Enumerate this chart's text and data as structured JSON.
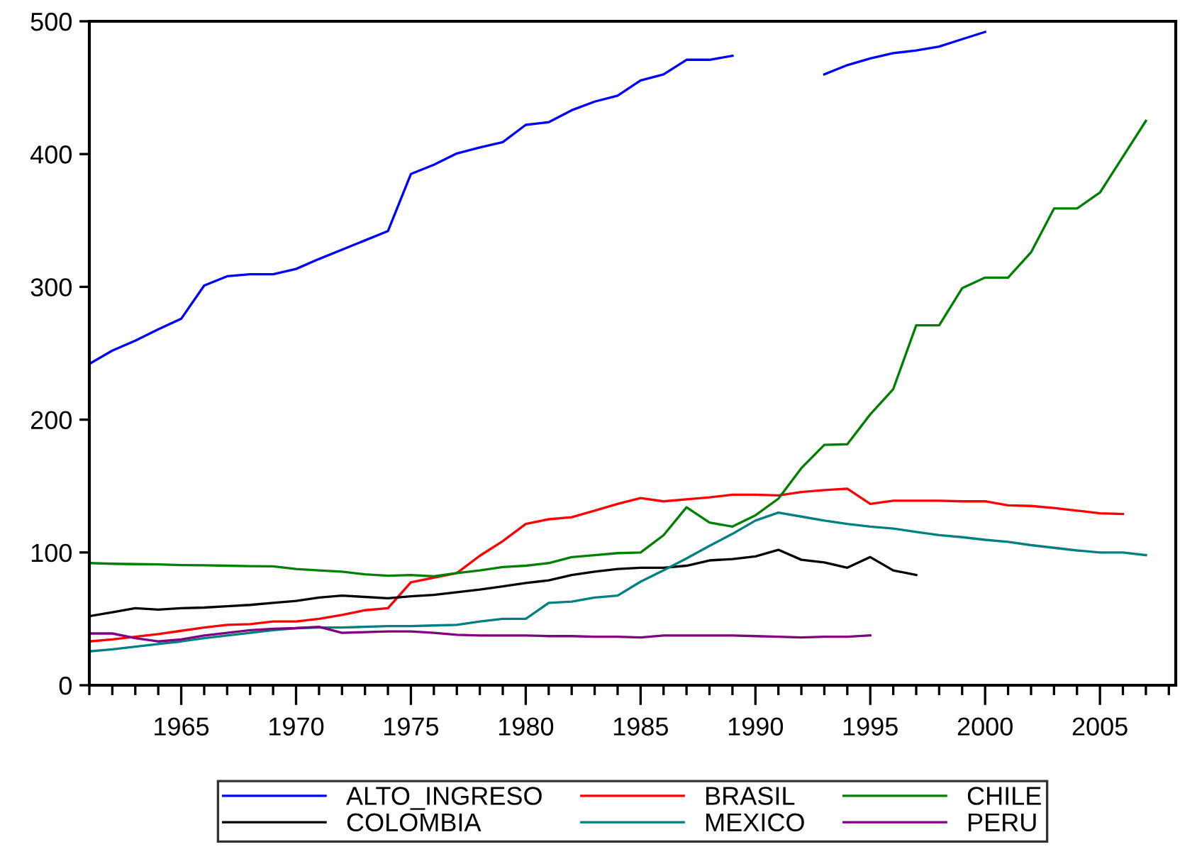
{
  "chart_data": {
    "type": "line",
    "x": [
      1961,
      1962,
      1963,
      1964,
      1965,
      1966,
      1967,
      1968,
      1969,
      1970,
      1971,
      1972,
      1973,
      1974,
      1975,
      1976,
      1977,
      1978,
      1979,
      1980,
      1981,
      1982,
      1983,
      1984,
      1985,
      1986,
      1987,
      1988,
      1989,
      1990,
      1991,
      1992,
      1993,
      1994,
      1995,
      1996,
      1997,
      1998,
      1999,
      2000,
      2001,
      2002,
      2003,
      2004,
      2005,
      2006,
      2007
    ],
    "series": [
      {
        "name": "ALTO_INGRESO",
        "color": "#0000ff",
        "values": [
          242,
          252,
          259.5,
          268,
          276,
          301,
          308,
          309.5,
          309.5,
          313.5,
          321,
          328,
          335,
          342,
          385,
          392,
          400.5,
          405,
          409,
          422,
          424,
          433,
          439.5,
          444,
          455.5,
          460,
          471,
          471,
          474,
          null,
          null,
          null,
          460,
          467,
          472,
          476,
          478,
          481,
          486.5,
          492,
          null,
          null,
          null,
          null,
          null,
          null,
          null
        ]
      },
      {
        "name": "BRASIL",
        "color": "#ff0000",
        "values": [
          33,
          34.5,
          36.5,
          38.5,
          41,
          43.5,
          45.5,
          46,
          48,
          48,
          50,
          53,
          56.5,
          58,
          77.5,
          81,
          84.5,
          97.5,
          108.5,
          121.5,
          125,
          126.5,
          131.5,
          136.5,
          141,
          138.5,
          140,
          141.5,
          143.5,
          143.5,
          143,
          145.5,
          147,
          148,
          136.5,
          139,
          139,
          139,
          138.5,
          138.5,
          135.5,
          135,
          133.5,
          131.5,
          129.5,
          129,
          null
        ]
      },
      {
        "name": "CHILE",
        "color": "#008000",
        "values": [
          92,
          91.5,
          91.2,
          91,
          90.5,
          90.3,
          90,
          89.7,
          89.5,
          87.5,
          86.5,
          85.5,
          83.5,
          82.5,
          83,
          82,
          84.5,
          86.5,
          89,
          90,
          92,
          96.5,
          98,
          99.5,
          100,
          113,
          134,
          122.5,
          119.5,
          128,
          140.5,
          163.5,
          181,
          181.5,
          204,
          223,
          271,
          271,
          299,
          307,
          307,
          326,
          359,
          359,
          371,
          398,
          425
        ]
      },
      {
        "name": "COLOMBIA",
        "color": "#000000",
        "values": [
          52,
          55,
          58,
          57,
          58,
          58.5,
          59.5,
          60.5,
          62,
          63.5,
          66,
          67.5,
          66.5,
          65.5,
          67,
          68,
          70,
          72,
          74.5,
          77,
          79,
          83,
          85.5,
          87.5,
          88.5,
          88.5,
          90,
          94,
          95,
          97,
          102,
          94.5,
          92.5,
          88.5,
          96.5,
          86.5,
          83,
          null,
          null,
          null,
          null,
          null,
          null,
          null,
          null,
          null,
          null
        ]
      },
      {
        "name": "MEXICO",
        "color": "#008080",
        "values": [
          25.5,
          27,
          29,
          31,
          33,
          35.5,
          37.5,
          39.5,
          41.5,
          43,
          43.5,
          43.5,
          44,
          44.5,
          44.5,
          45,
          45.5,
          48,
          50,
          50,
          62,
          63,
          66,
          67.5,
          78,
          86.5,
          95.5,
          105,
          114,
          124,
          130,
          127,
          124,
          121.5,
          119.5,
          118,
          115.5,
          113,
          111.5,
          109.5,
          108,
          105.5,
          103.5,
          101.5,
          100,
          100,
          98
        ]
      },
      {
        "name": "PERU",
        "color": "#800080",
        "values": [
          39,
          39,
          35.5,
          33,
          34.5,
          37.5,
          39.5,
          41.5,
          42.5,
          43,
          44,
          39.5,
          40,
          40.5,
          40.5,
          39.5,
          38,
          37.5,
          37.5,
          37.5,
          37,
          37,
          36.5,
          36.5,
          36,
          37.5,
          37.5,
          37.5,
          37.5,
          37,
          36.5,
          36,
          36.5,
          36.5,
          37.5,
          null,
          null,
          null,
          null,
          null,
          null,
          null,
          null,
          null,
          null,
          null,
          null
        ]
      }
    ],
    "xlim": [
      1961,
      2008.3
    ],
    "xticks": [
      {
        "value": 1961,
        "label": null
      },
      {
        "value": 1962,
        "label": null
      },
      {
        "value": 1963,
        "label": null
      },
      {
        "value": 1964,
        "label": null
      },
      1965,
      {
        "value": 1966,
        "label": null
      },
      {
        "value": 1967,
        "label": null
      },
      {
        "value": 1968,
        "label": null
      },
      {
        "value": 1969,
        "label": null
      },
      1970,
      {
        "value": 1971,
        "label": null
      },
      {
        "value": 1972,
        "label": null
      },
      {
        "value": 1973,
        "label": null
      },
      {
        "value": 1974,
        "label": null
      },
      1975,
      {
        "value": 1976,
        "label": null
      },
      {
        "value": 1977,
        "label": null
      },
      {
        "value": 1978,
        "label": null
      },
      {
        "value": 1979,
        "label": null
      },
      1980,
      {
        "value": 1981,
        "label": null
      },
      {
        "value": 1982,
        "label": null
      },
      {
        "value": 1983,
        "label": null
      },
      {
        "value": 1984,
        "label": null
      },
      1985,
      {
        "value": 1986,
        "label": null
      },
      {
        "value": 1987,
        "label": null
      },
      {
        "value": 1988,
        "label": null
      },
      {
        "value": 1989,
        "label": null
      },
      1990,
      {
        "value": 1991,
        "label": null
      },
      {
        "value": 1992,
        "label": null
      },
      {
        "value": 1993,
        "label": null
      },
      {
        "value": 1994,
        "label": null
      },
      1995,
      {
        "value": 1996,
        "label": null
      },
      {
        "value": 1997,
        "label": null
      },
      {
        "value": 1998,
        "label": null
      },
      {
        "value": 1999,
        "label": null
      },
      2000,
      {
        "value": 2001,
        "label": null
      },
      {
        "value": 2002,
        "label": null
      },
      {
        "value": 2003,
        "label": null
      },
      {
        "value": 2004,
        "label": null
      },
      2005,
      {
        "value": 2006,
        "label": null
      },
      {
        "value": 2007,
        "label": null
      },
      {
        "value": 2008,
        "label": null
      }
    ],
    "ylim": [
      0,
      500
    ],
    "yticks": [
      0,
      100,
      200,
      300,
      400,
      500
    ],
    "legend": "bottom",
    "line_style": "solid"
  }
}
